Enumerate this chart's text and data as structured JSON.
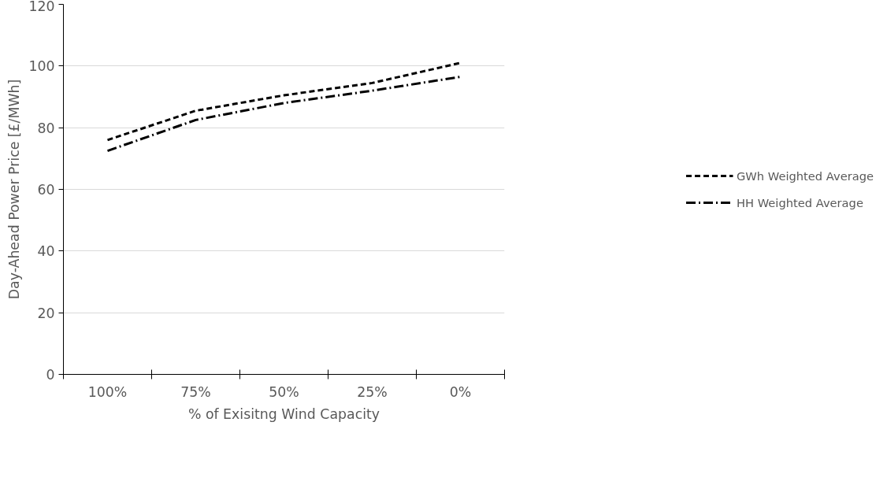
{
  "chart_data": {
    "type": "line",
    "xlabel": "% of Exisitng Wind Capacity",
    "ylabel": "Day-Ahead Power Price [£/MWh]",
    "categories": [
      "100%",
      "75%",
      "50%",
      "25%",
      "0%"
    ],
    "series": [
      {
        "name": "GWh Weighted Average",
        "color": "#000000",
        "line_style": "dashed",
        "values": [
          76,
          85.5,
          90.5,
          94.5,
          101
        ]
      },
      {
        "name": "HH Weighted Average",
        "color": "#000000",
        "line_style": "dashdot",
        "values": [
          72.5,
          82.5,
          88,
          92,
          96.5
        ]
      }
    ],
    "ylim": [
      0,
      120
    ],
    "yticks": [
      0,
      20,
      40,
      60,
      80,
      100,
      120
    ],
    "grid": "y",
    "legend": "right",
    "marker": "none"
  }
}
